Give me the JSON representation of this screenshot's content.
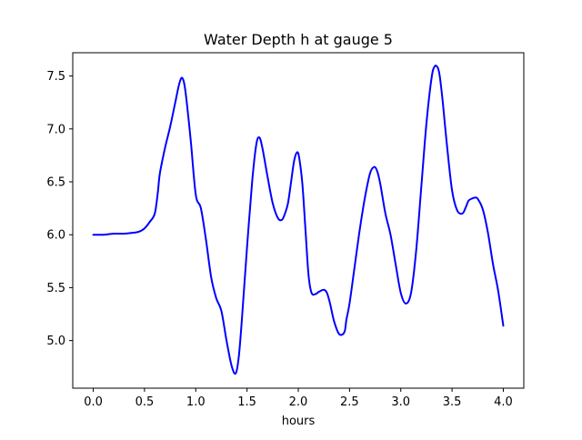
{
  "chart_data": {
    "type": "line",
    "title": "Water Depth h at gauge 5",
    "xlabel": "hours",
    "ylabel": "",
    "xlim": [
      -0.2,
      4.2
    ],
    "ylim": [
      4.55,
      7.72
    ],
    "xticks": [
      {
        "value": 0.0,
        "label": "0.0"
      },
      {
        "value": 0.5,
        "label": "0.5"
      },
      {
        "value": 1.0,
        "label": "1.0"
      },
      {
        "value": 1.5,
        "label": "1.5"
      },
      {
        "value": 2.0,
        "label": "2.0"
      },
      {
        "value": 2.5,
        "label": "2.5"
      },
      {
        "value": 3.0,
        "label": "3.0"
      },
      {
        "value": 3.5,
        "label": "3.5"
      },
      {
        "value": 4.0,
        "label": "4.0"
      }
    ],
    "yticks": [
      {
        "value": 5.0,
        "label": "5.0"
      },
      {
        "value": 5.5,
        "label": "5.5"
      },
      {
        "value": 6.0,
        "label": "6.0"
      },
      {
        "value": 6.5,
        "label": "6.5"
      },
      {
        "value": 7.0,
        "label": "7.0"
      },
      {
        "value": 7.5,
        "label": "7.5"
      }
    ],
    "grid": false,
    "legend": false,
    "series": [
      {
        "color": "#0000ff",
        "x": [
          0.0,
          0.1,
          0.2,
          0.3,
          0.4,
          0.45,
          0.5,
          0.55,
          0.6,
          0.63,
          0.65,
          0.7,
          0.75,
          0.8,
          0.84,
          0.87,
          0.9,
          0.95,
          1.0,
          1.05,
          1.1,
          1.15,
          1.2,
          1.25,
          1.3,
          1.35,
          1.39,
          1.42,
          1.45,
          1.5,
          1.55,
          1.59,
          1.62,
          1.65,
          1.7,
          1.75,
          1.8,
          1.84,
          1.87,
          1.9,
          1.93,
          1.96,
          1.99,
          2.01,
          2.04,
          2.07,
          2.1,
          2.13,
          2.17,
          2.2,
          2.25,
          2.28,
          2.31,
          2.35,
          2.4,
          2.45,
          2.47,
          2.5,
          2.55,
          2.6,
          2.65,
          2.7,
          2.74,
          2.77,
          2.8,
          2.85,
          2.9,
          2.95,
          3.0,
          3.05,
          3.1,
          3.15,
          3.2,
          3.25,
          3.3,
          3.33,
          3.36,
          3.38,
          3.41,
          3.45,
          3.5,
          3.55,
          3.6,
          3.63,
          3.66,
          3.69,
          3.72,
          3.75,
          3.8,
          3.85,
          3.9,
          3.95,
          4.0
        ],
        "y": [
          6.0,
          6.0,
          6.01,
          6.01,
          6.02,
          6.03,
          6.06,
          6.12,
          6.2,
          6.4,
          6.58,
          6.82,
          7.02,
          7.25,
          7.43,
          7.48,
          7.35,
          6.9,
          6.38,
          6.25,
          5.95,
          5.6,
          5.4,
          5.28,
          5.0,
          4.76,
          4.69,
          4.85,
          5.2,
          5.88,
          6.5,
          6.85,
          6.92,
          6.82,
          6.55,
          6.3,
          6.16,
          6.14,
          6.2,
          6.3,
          6.5,
          6.7,
          6.78,
          6.72,
          6.48,
          6.05,
          5.62,
          5.45,
          5.44,
          5.46,
          5.48,
          5.45,
          5.35,
          5.18,
          5.06,
          5.08,
          5.2,
          5.35,
          5.7,
          6.05,
          6.35,
          6.58,
          6.64,
          6.6,
          6.48,
          6.2,
          6.0,
          5.72,
          5.45,
          5.35,
          5.45,
          5.85,
          6.45,
          7.05,
          7.48,
          7.59,
          7.58,
          7.5,
          7.25,
          6.85,
          6.42,
          6.23,
          6.2,
          6.25,
          6.32,
          6.34,
          6.35,
          6.34,
          6.24,
          6.02,
          5.72,
          5.47,
          5.14
        ]
      }
    ]
  }
}
